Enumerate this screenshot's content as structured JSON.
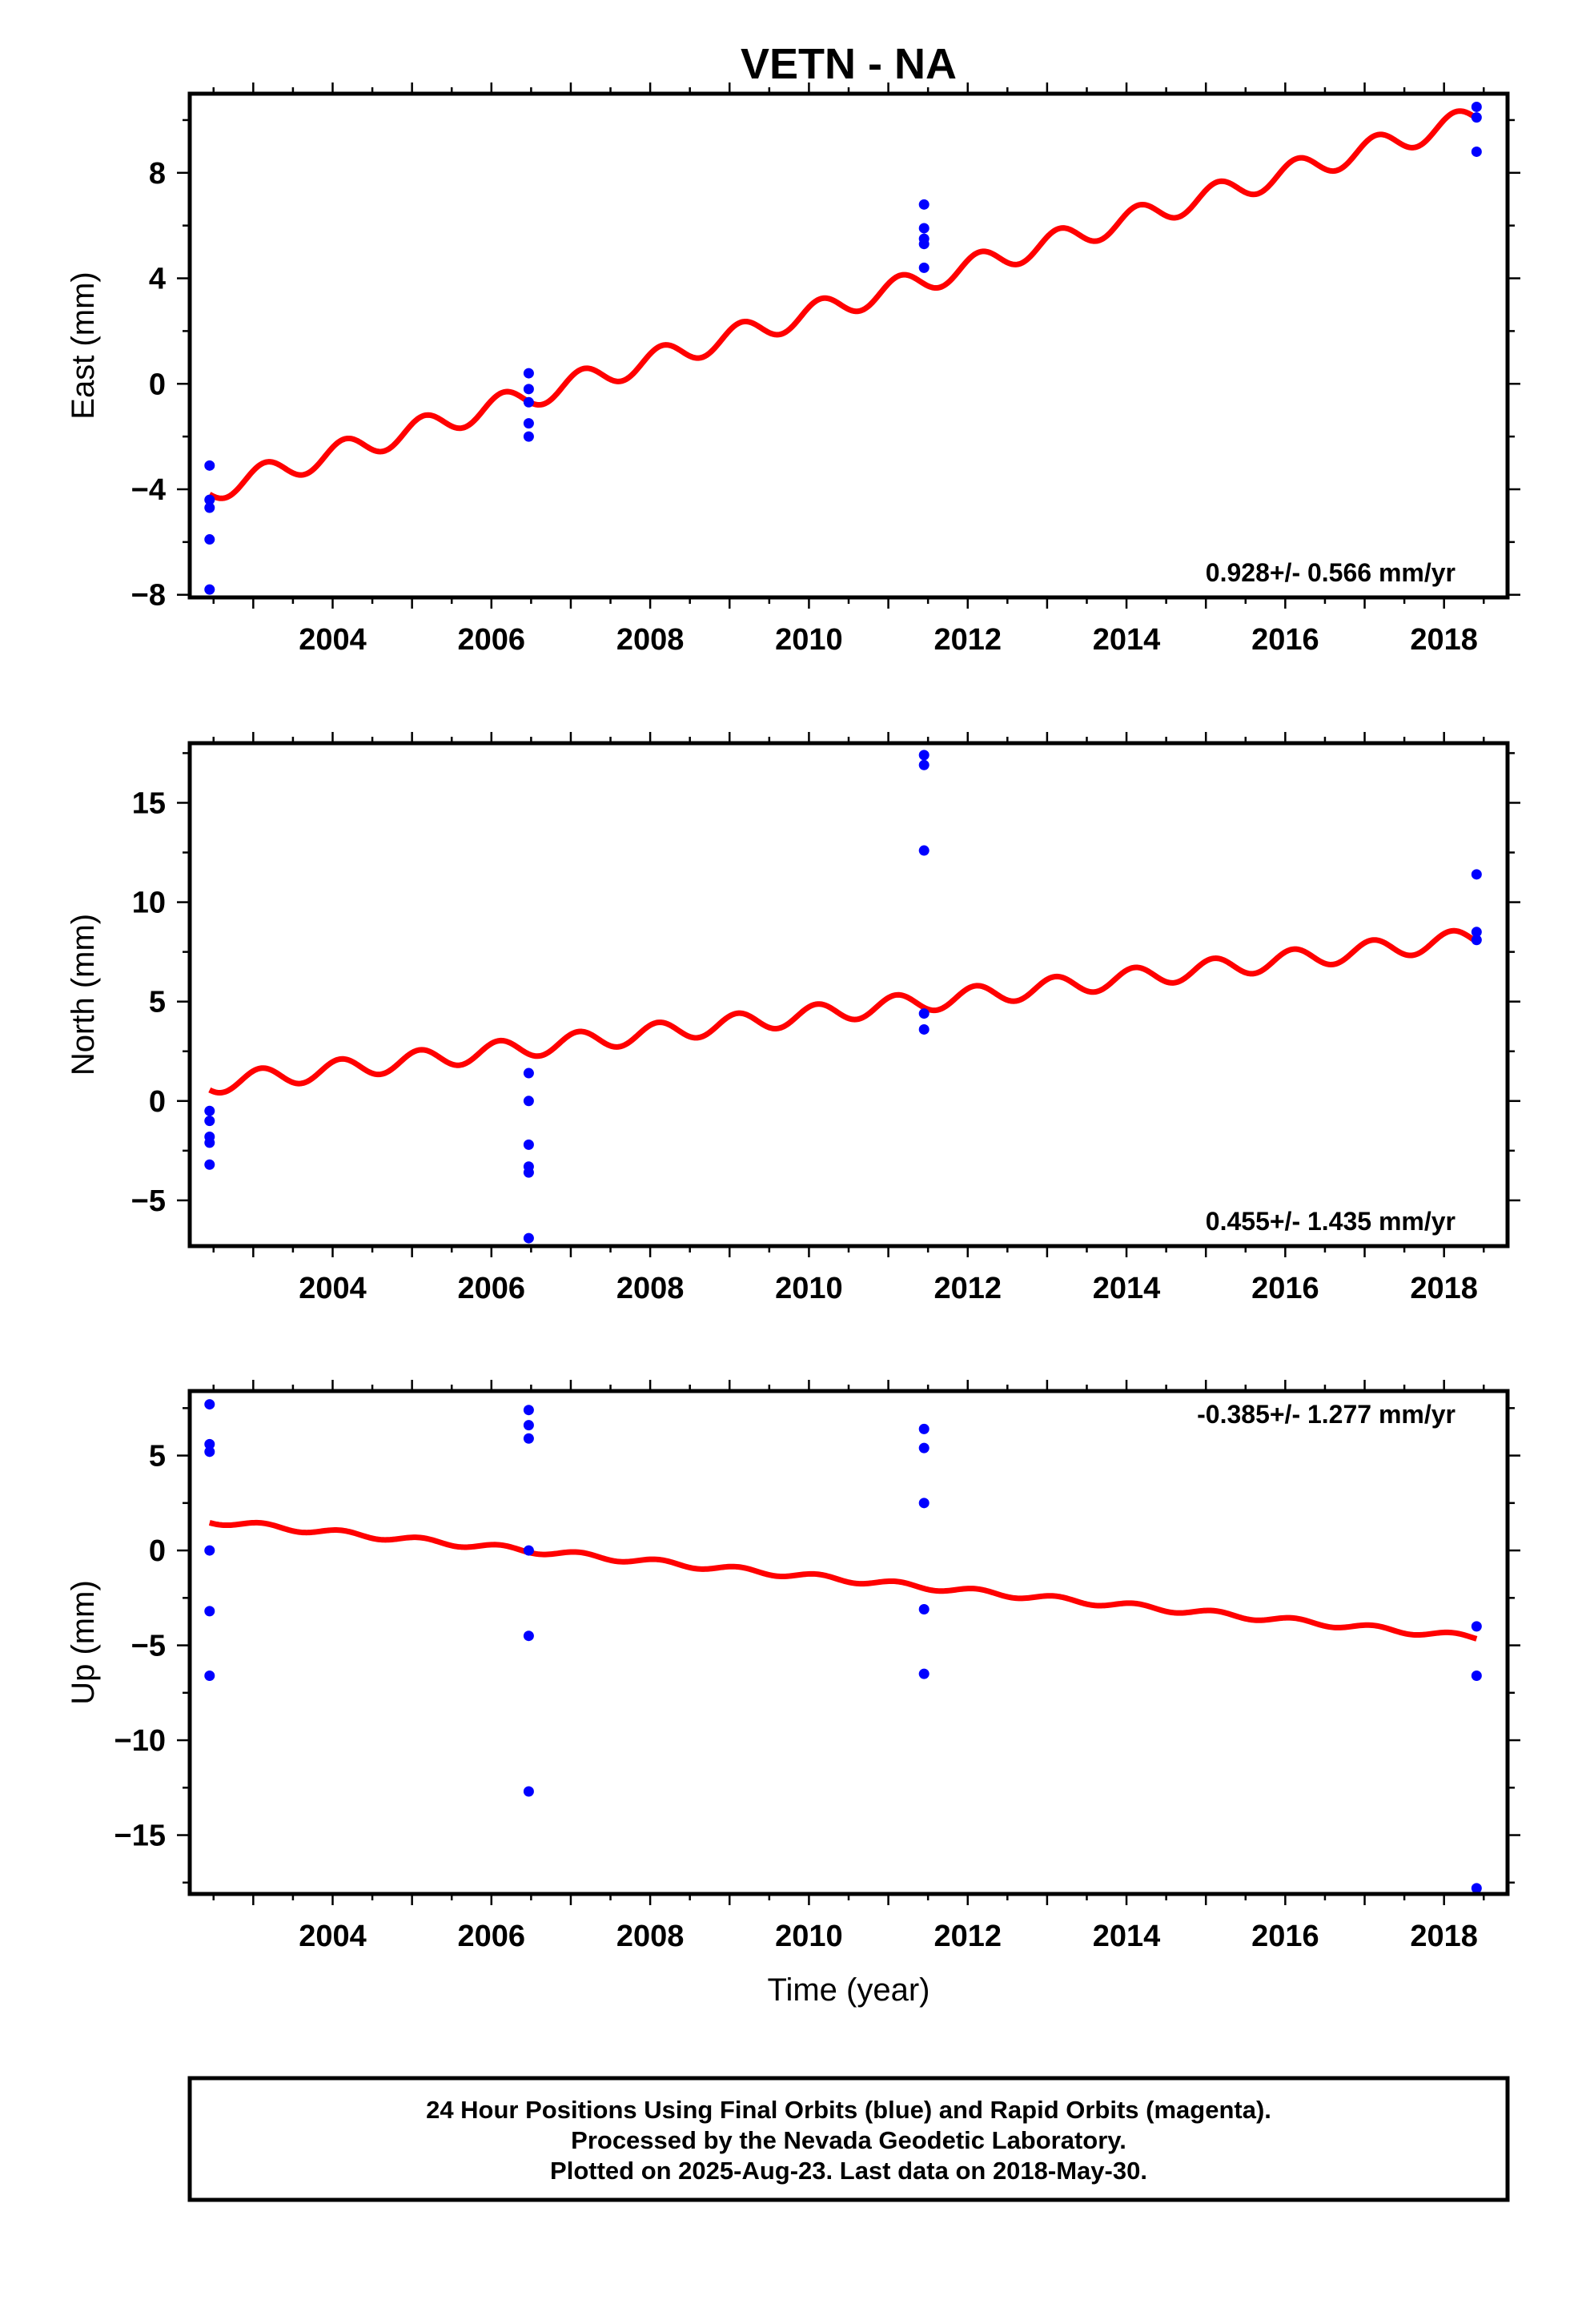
{
  "title": "VETN - NA",
  "colors": {
    "fit": "#ff0000",
    "final_orbits": "#0000ff",
    "frame": "#000000"
  },
  "footer": {
    "line1": "24 Hour Positions Using Final Orbits (blue) and Rapid Orbits (magenta).",
    "line2": "Processed by the Nevada Geodetic Laboratory.",
    "line3": "Plotted on 2025-Aug-23. Last data on 2018-May-30."
  },
  "chart_data": [
    {
      "type": "scatter",
      "panel": "east",
      "ylabel": "East (mm)",
      "xlabel": "",
      "rate_label": "0.928+/- 0.566 mm/yr",
      "rate_position": "bottom-right",
      "xlim": [
        2002.2,
        2018.8
      ],
      "ylim": [
        -8.1,
        11.0
      ],
      "xticks": [
        2004,
        2006,
        2008,
        2010,
        2012,
        2014,
        2016,
        2018
      ],
      "yticks": [
        -8,
        -4,
        0,
        4,
        8
      ],
      "ytick_labels": [
        "−8",
        "−4",
        "0",
        "4",
        "8"
      ],
      "points": [
        [
          2002.45,
          -3.1
        ],
        [
          2002.45,
          -4.4
        ],
        [
          2002.45,
          -4.7
        ],
        [
          2002.45,
          -5.9
        ],
        [
          2002.45,
          -7.8
        ],
        [
          2006.47,
          0.4
        ],
        [
          2006.47,
          -0.2
        ],
        [
          2006.47,
          -0.7
        ],
        [
          2006.47,
          -1.5
        ],
        [
          2006.47,
          -2.0
        ],
        [
          2011.45,
          6.8
        ],
        [
          2011.45,
          5.9
        ],
        [
          2011.45,
          5.5
        ],
        [
          2011.45,
          5.3
        ],
        [
          2011.45,
          4.4
        ],
        [
          2018.41,
          10.5
        ],
        [
          2018.41,
          10.1
        ],
        [
          2018.41,
          8.8
        ]
      ],
      "fit": {
        "start": 2002.45,
        "end": 2018.41,
        "value_at_start": -4.05,
        "value_at_end": 10.1,
        "annual_amplitude": 0.45,
        "phase_year": 2002.9
      }
    },
    {
      "type": "scatter",
      "panel": "north",
      "ylabel": "North (mm)",
      "xlabel": "",
      "rate_label": "0.455+/- 1.435 mm/yr",
      "rate_position": "bottom-right",
      "xlim": [
        2002.2,
        2018.8
      ],
      "ylim": [
        -7.3,
        18.0
      ],
      "xticks": [
        2004,
        2006,
        2008,
        2010,
        2012,
        2014,
        2016,
        2018
      ],
      "yticks": [
        -5,
        0,
        5,
        10,
        15
      ],
      "ytick_labels": [
        "−5",
        "0",
        "5",
        "10",
        "15"
      ],
      "points": [
        [
          2002.45,
          -0.5
        ],
        [
          2002.45,
          -1.0
        ],
        [
          2002.45,
          -1.8
        ],
        [
          2002.45,
          -2.1
        ],
        [
          2002.45,
          -3.2
        ],
        [
          2006.47,
          1.4
        ],
        [
          2006.47,
          0.0
        ],
        [
          2006.47,
          -2.2
        ],
        [
          2006.47,
          -3.3
        ],
        [
          2006.47,
          -3.6
        ],
        [
          2006.47,
          -6.9
        ],
        [
          2011.45,
          17.4
        ],
        [
          2011.45,
          16.9
        ],
        [
          2011.45,
          12.6
        ],
        [
          2011.45,
          4.4
        ],
        [
          2011.45,
          3.6
        ],
        [
          2018.41,
          11.4
        ],
        [
          2018.41,
          8.5
        ],
        [
          2018.41,
          8.1
        ]
      ],
      "fit": {
        "start": 2002.45,
        "end": 2018.41,
        "value_at_start": 0.85,
        "value_at_end": 8.2,
        "annual_amplitude": 0.5,
        "phase_year": 2002.85
      }
    },
    {
      "type": "scatter",
      "panel": "up",
      "ylabel": "Up (mm)",
      "xlabel": "Time (year)",
      "rate_label": "-0.385+/- 1.277 mm/yr",
      "rate_position": "top-right",
      "xlim": [
        2002.2,
        2018.8
      ],
      "ylim": [
        -18.1,
        8.4
      ],
      "xticks": [
        2004,
        2006,
        2008,
        2010,
        2012,
        2014,
        2016,
        2018
      ],
      "yticks": [
        -15,
        -10,
        -5,
        0,
        5
      ],
      "ytick_labels": [
        "−15",
        "−10",
        "−5",
        "0",
        "5"
      ],
      "points": [
        [
          2002.45,
          7.7
        ],
        [
          2002.45,
          5.6
        ],
        [
          2002.45,
          5.2
        ],
        [
          2002.45,
          0.0
        ],
        [
          2002.45,
          -3.2
        ],
        [
          2002.45,
          -6.6
        ],
        [
          2006.47,
          7.4
        ],
        [
          2006.47,
          6.6
        ],
        [
          2006.47,
          5.9
        ],
        [
          2006.47,
          0.0
        ],
        [
          2006.47,
          -4.5
        ],
        [
          2006.47,
          -12.7
        ],
        [
          2011.45,
          6.4
        ],
        [
          2011.45,
          5.4
        ],
        [
          2011.45,
          2.5
        ],
        [
          2011.45,
          -3.1
        ],
        [
          2011.45,
          -6.5
        ],
        [
          2018.41,
          -4.0
        ],
        [
          2018.41,
          -6.6
        ],
        [
          2018.41,
          -17.8
        ]
      ],
      "fit": {
        "start": 2002.45,
        "end": 2018.41,
        "value_at_start": 1.55,
        "value_at_end": -4.6,
        "annual_amplitude": 0.15,
        "phase_year": 2002.85
      }
    }
  ]
}
